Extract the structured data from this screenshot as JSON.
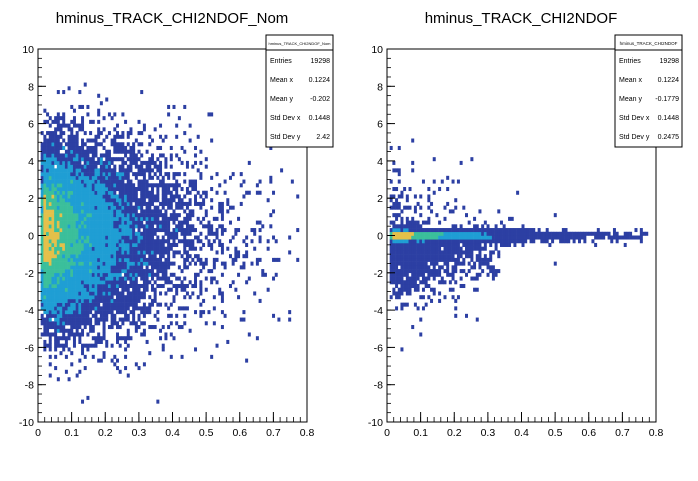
{
  "chart_data": [
    {
      "type": "heatmap",
      "title": "hminus_TRACK_CHI2NDOF_Nom",
      "xlabel": "",
      "ylabel": "",
      "xlim": [
        0,
        0.8
      ],
      "ylim": [
        -10,
        10
      ],
      "x_ticks": [
        "0",
        "0.1",
        "0.2",
        "0.3",
        "0.4",
        "0.5",
        "0.6",
        "0.7",
        "0.8"
      ],
      "y_ticks": [
        "-10",
        "-8",
        "-6",
        "-4",
        "-2",
        "0",
        "2",
        "4",
        "6",
        "8",
        "10"
      ],
      "colormap": "kBird (blue to yellow)",
      "grid": false,
      "stats_box": {
        "name": "hminus_TRACK_CHI2NDOF_Nom",
        "entries": [
          {
            "label": "Entries",
            "value": "19298"
          },
          {
            "label": "Mean x",
            "value": "0.1224"
          },
          {
            "label": "Mean y",
            "value": "-0.202"
          },
          {
            "label": "Std Dev x",
            "value": "0.1448"
          },
          {
            "label": "Std Dev y",
            "value": "2.42"
          }
        ],
        "placement": "top-right"
      },
      "distribution": {
        "center_x": 0.03,
        "center_y": 0.0,
        "spread_y_near_zero": 2.42,
        "peak_region": [
          0.02,
          0.06
        ]
      }
    },
    {
      "type": "heatmap",
      "title": "hminus_TRACK_CHI2NDOF",
      "xlabel": "",
      "ylabel": "",
      "xlim": [
        0,
        0.8
      ],
      "ylim": [
        -10,
        10
      ],
      "x_ticks": [
        "0",
        "0.1",
        "0.2",
        "0.3",
        "0.4",
        "0.5",
        "0.6",
        "0.7",
        "0.8"
      ],
      "y_ticks": [
        "-10",
        "-8",
        "-6",
        "-4",
        "-2",
        "0",
        "2",
        "4",
        "6",
        "8",
        "10"
      ],
      "colormap": "kBird (blue to yellow)",
      "grid": false,
      "stats_box": {
        "name": "hminus_TRACK_CHI2NDOF",
        "entries": [
          {
            "label": "Entries",
            "value": "19298"
          },
          {
            "label": "Mean x",
            "value": "0.1224"
          },
          {
            "label": "Mean y",
            "value": "-0.1779"
          },
          {
            "label": "Std Dev x",
            "value": "0.1448"
          },
          {
            "label": "Std Dev y",
            "value": "0.2475"
          }
        ],
        "placement": "top-right"
      },
      "distribution": {
        "center_x": 0.03,
        "center_y": 0.0,
        "spread_y_near_zero": 0.2475
      }
    }
  ],
  "colors": {
    "low": "#2c3fa3",
    "mid": "#1f9ed4",
    "midhigh": "#3bbf9b",
    "high": "#e4c04a"
  }
}
